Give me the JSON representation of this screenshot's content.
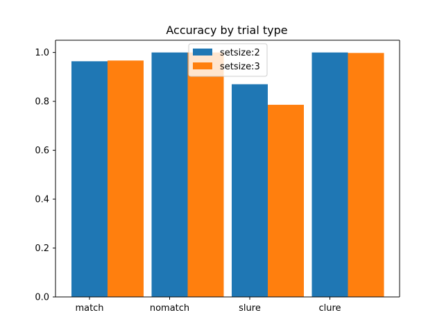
{
  "chart_data": {
    "type": "bar",
    "title": "Accuracy by trial type",
    "xlabel": "",
    "ylabel": "",
    "categories": [
      "match",
      "nomatch",
      "slure",
      "clure"
    ],
    "series": [
      {
        "name": "setsize:2",
        "color": "#1f77b4",
        "values": [
          0.964,
          1.0,
          0.87,
          1.0
        ]
      },
      {
        "name": "setsize:3",
        "color": "#ff7f0e",
        "values": [
          0.967,
          1.0,
          0.786,
          0.998
        ]
      }
    ],
    "ylim": [
      0,
      1.05
    ],
    "yticks": [
      "0.0",
      "0.2",
      "0.4",
      "0.6",
      "0.8",
      "1.0"
    ],
    "grid": false,
    "legend_position": "top-center"
  }
}
